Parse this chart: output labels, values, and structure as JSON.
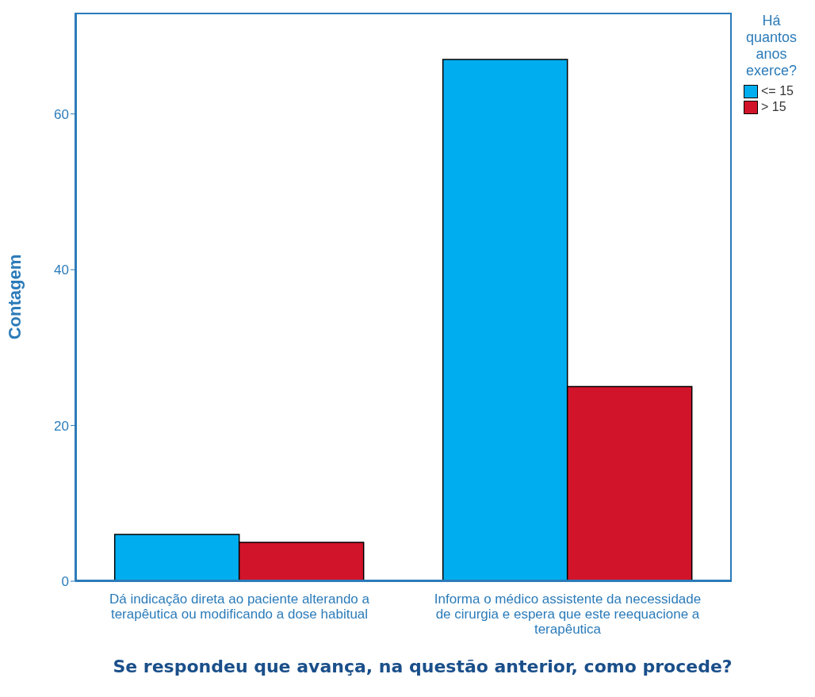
{
  "chart_data": {
    "type": "bar",
    "xlabel": "Se respondeu que avança, na questão anterior, como procede?",
    "ylabel": "Contagem",
    "legend_title": "Há quantos anos exerce?",
    "categories": [
      "Dá indicação direta ao paciente alterando a terapêutica ou modificando a dose habitual",
      "Informa o médico assistente da necessidade de cirurgia e espera que este reequacione a terapêutica"
    ],
    "series": [
      {
        "name": "<= 15",
        "color": "#00aeef",
        "values": [
          6,
          67
        ]
      },
      {
        "name": "> 15",
        "color": "#d2142a",
        "values": [
          5,
          25
        ]
      }
    ],
    "ylim": [
      0,
      73
    ],
    "yticks": [
      0,
      20,
      40,
      60
    ],
    "legend": "top right"
  }
}
